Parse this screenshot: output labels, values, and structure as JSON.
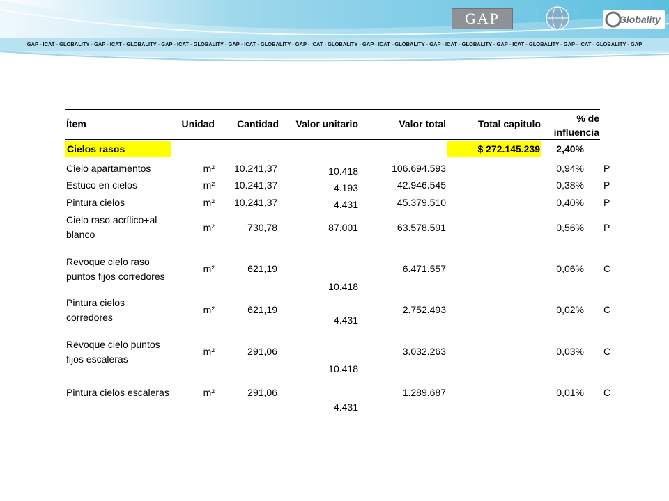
{
  "header": {
    "strip_text": "GAP - ICAT - GLOBALITY - GAP - ICAT - GLOBALITY - GAP - ICAT - GLOBALITY - GAP - ICAT - GLOBALITY - GAP - ICAT - GLOBALITY - GAP - ICAT - GLOBALITY - GAP - ICAT - GLOBALITY - GAP - ICAT - GLOBALITY - GAP - ICAT - GLOBALITY - GAP",
    "logos": [
      {
        "name": "gap-logo",
        "text": "GAP"
      },
      {
        "name": "icat-logo",
        "text": ""
      },
      {
        "name": "globality-logo",
        "text": "Globality"
      }
    ]
  },
  "table": {
    "columns": [
      "Ítem",
      "Unidad",
      "Cantidad",
      "Valor unitario",
      "Valor total",
      "Total capitulo",
      "% de influencia"
    ],
    "section": {
      "name": "Cielos rasos",
      "total": "$ 272.145.239",
      "pct": "2,40%"
    },
    "rows": [
      {
        "item": "Cielo apartamentos",
        "unit": "m²",
        "qty": "10.241,37",
        "unit_value": "10.418",
        "total": "106.694.593",
        "pct": "0,94%",
        "flag": "P"
      },
      {
        "item": "Estuco en cielos",
        "unit": "m²",
        "qty": "10.241,37",
        "unit_value": "4.193",
        "total": "42.946.545",
        "pct": "0,38%",
        "flag": "P"
      },
      {
        "item": "Pintura cielos",
        "unit": "m²",
        "qty": "10.241,37",
        "unit_value": "4.431",
        "total": "45.379.510",
        "pct": "0,40%",
        "flag": "P"
      },
      {
        "item": "Cielo raso acrílico+al blanco",
        "unit": "m²",
        "qty": "730,78",
        "unit_value": "87.001",
        "total": "63.578.591",
        "pct": "0,56%",
        "flag": "P"
      },
      {
        "item": "Revoque cielo raso puntos fijos corredores",
        "unit": "m²",
        "qty": "621,19",
        "unit_value": "10.418",
        "total": "6.471.557",
        "pct": "0,06%",
        "flag": "C"
      },
      {
        "item": "Pintura cielos corredores",
        "unit": "m²",
        "qty": "621,19",
        "unit_value": "4.431",
        "total": "2.752.493",
        "pct": "0,02%",
        "flag": "C"
      },
      {
        "item": "Revoque cielo puntos fijos escaleras",
        "unit": "m²",
        "qty": "291,06",
        "unit_value": "10.418",
        "total": "3.032.263",
        "pct": "0,03%",
        "flag": "C"
      },
      {
        "item": "Pintura cielos escaleras",
        "unit": "m²",
        "qty": "291,06",
        "unit_value": "4.431",
        "total": "1.289.687",
        "pct": "0,01%",
        "flag": "C"
      }
    ]
  }
}
